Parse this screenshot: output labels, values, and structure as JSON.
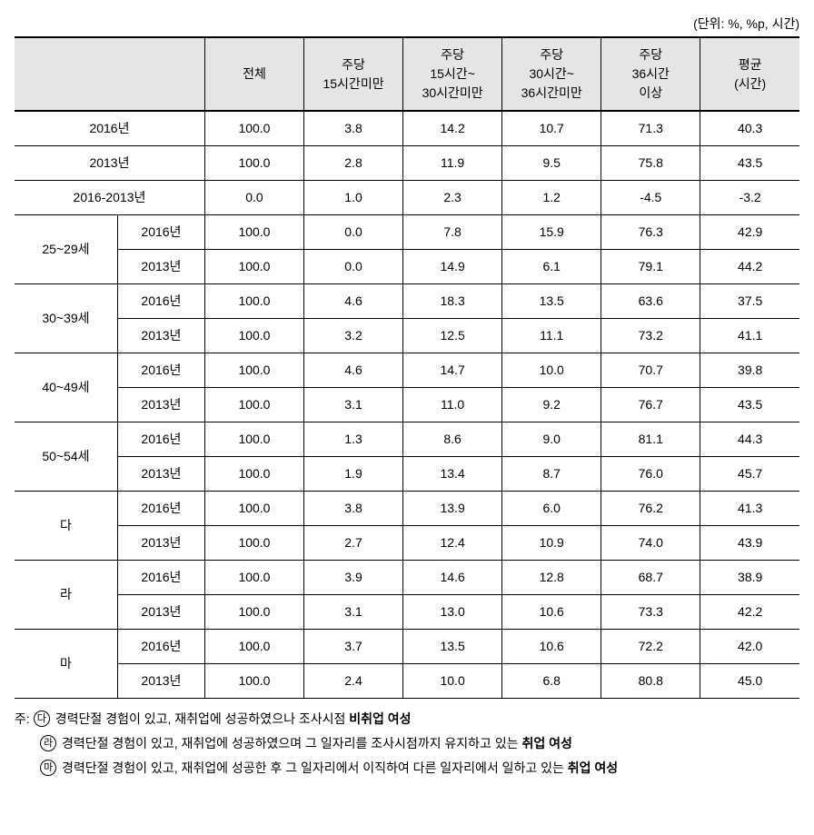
{
  "unit_label": "(단위: %, %p, 시간)",
  "table": {
    "headers": {
      "col_blank": "",
      "col_total": "전체",
      "col_under15": "주당\n15시간미만",
      "col_15_30": "주당\n15시간~\n30시간미만",
      "col_30_36": "주당\n30시간~\n36시간미만",
      "col_over36": "주당\n36시간\n이상",
      "col_avg": "평균\n(시간)"
    },
    "top_rows": [
      {
        "label": "2016년",
        "values": [
          "100.0",
          "3.8",
          "14.2",
          "10.7",
          "71.3",
          "40.3"
        ]
      },
      {
        "label": "2013년",
        "values": [
          "100.0",
          "2.8",
          "11.9",
          "9.5",
          "75.8",
          "43.5"
        ]
      },
      {
        "label": "2016-2013년",
        "values": [
          "0.0",
          "1.0",
          "2.3",
          "1.2",
          "-4.5",
          "-3.2"
        ]
      }
    ],
    "groups": [
      {
        "label": "25~29세",
        "rows": [
          {
            "year": "2016년",
            "values": [
              "100.0",
              "0.0",
              "7.8",
              "15.9",
              "76.3",
              "42.9"
            ]
          },
          {
            "year": "2013년",
            "values": [
              "100.0",
              "0.0",
              "14.9",
              "6.1",
              "79.1",
              "44.2"
            ]
          }
        ]
      },
      {
        "label": "30~39세",
        "rows": [
          {
            "year": "2016년",
            "values": [
              "100.0",
              "4.6",
              "18.3",
              "13.5",
              "63.6",
              "37.5"
            ]
          },
          {
            "year": "2013년",
            "values": [
              "100.0",
              "3.2",
              "12.5",
              "11.1",
              "73.2",
              "41.1"
            ]
          }
        ]
      },
      {
        "label": "40~49세",
        "rows": [
          {
            "year": "2016년",
            "values": [
              "100.0",
              "4.6",
              "14.7",
              "10.0",
              "70.7",
              "39.8"
            ]
          },
          {
            "year": "2013년",
            "values": [
              "100.0",
              "3.1",
              "11.0",
              "9.2",
              "76.7",
              "43.5"
            ]
          }
        ]
      },
      {
        "label": "50~54세",
        "rows": [
          {
            "year": "2016년",
            "values": [
              "100.0",
              "1.3",
              "8.6",
              "9.0",
              "81.1",
              "44.3"
            ]
          },
          {
            "year": "2013년",
            "values": [
              "100.0",
              "1.9",
              "13.4",
              "8.7",
              "76.0",
              "45.7"
            ]
          }
        ]
      },
      {
        "label": "다",
        "rows": [
          {
            "year": "2016년",
            "values": [
              "100.0",
              "3.8",
              "13.9",
              "6.0",
              "76.2",
              "41.3"
            ]
          },
          {
            "year": "2013년",
            "values": [
              "100.0",
              "2.7",
              "12.4",
              "10.9",
              "74.0",
              "43.9"
            ]
          }
        ]
      },
      {
        "label": "라",
        "rows": [
          {
            "year": "2016년",
            "values": [
              "100.0",
              "3.9",
              "14.6",
              "12.8",
              "68.7",
              "38.9"
            ]
          },
          {
            "year": "2013년",
            "values": [
              "100.0",
              "3.1",
              "13.0",
              "10.6",
              "73.3",
              "42.2"
            ]
          }
        ]
      },
      {
        "label": "마",
        "rows": [
          {
            "year": "2016년",
            "values": [
              "100.0",
              "3.7",
              "13.5",
              "10.6",
              "72.2",
              "42.0"
            ]
          },
          {
            "year": "2013년",
            "values": [
              "100.0",
              "2.4",
              "10.0",
              "6.8",
              "80.8",
              "45.0"
            ]
          }
        ]
      }
    ]
  },
  "notes": {
    "prefix": "주:",
    "items": [
      {
        "marker": "다",
        "text_parts": [
          "경력단절 경험이 있고, 재취업에 성공하였으나 조사시점 ",
          "비취업 여성"
        ],
        "bold_index": 1
      },
      {
        "marker": "라",
        "text_parts": [
          "경력단절 경험이 있고, 재취업에 성공하였으며 그 일자리를 조사시점까지 유지하고 있는 ",
          "취업 여성"
        ],
        "bold_index": 1
      },
      {
        "marker": "마",
        "text_parts": [
          "경력단절 경험이 있고, 재취업에 성공한 후 그 일자리에서 이직하여 다른 일자리에서 일하고 있는 ",
          "취업 여성"
        ],
        "bold_index": 1
      }
    ]
  }
}
